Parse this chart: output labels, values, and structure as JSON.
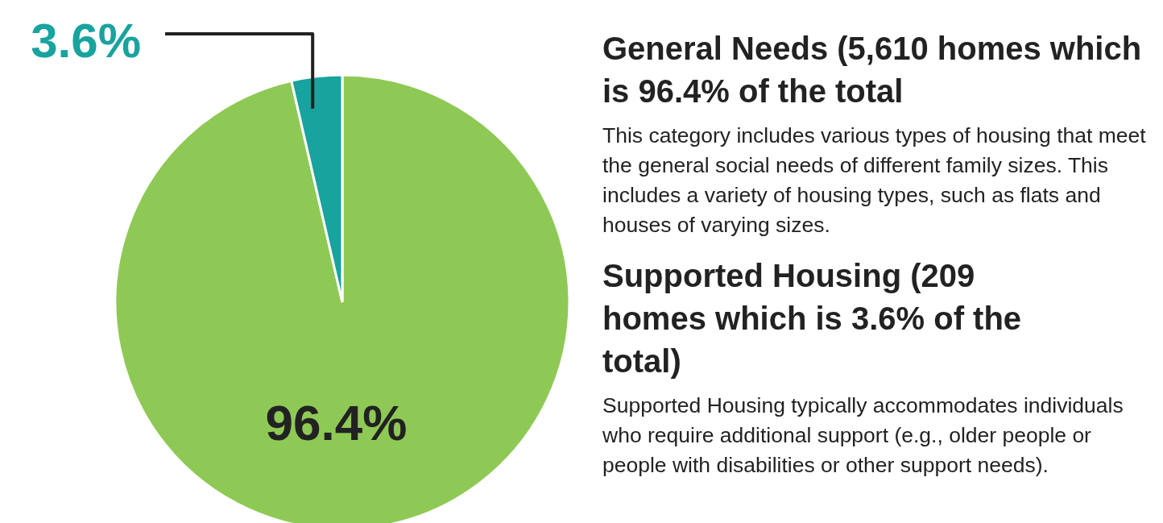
{
  "chart_data": {
    "type": "pie",
    "categories": [
      null,
      null
    ],
    "values": [
      96.4,
      3.6
    ],
    "colors": [
      "#8fc955",
      "#18a39e"
    ],
    "value_labels": [
      "96.4%",
      "3.6%"
    ],
    "annotations": [
      "General Needs (5,610 homes which is 96.4% of the total",
      "This category includes various types of housing that meet the general social needs of different family sizes. This includes a variety of housing types, such as flats and houses of varying sizes.",
      "Supported Housing (209 homes which is 3.6% of the total)",
      "Supported Housing typically accommodates individuals who require additional support (e.g., older people or people with disabilities or other support needs)."
    ]
  }
}
